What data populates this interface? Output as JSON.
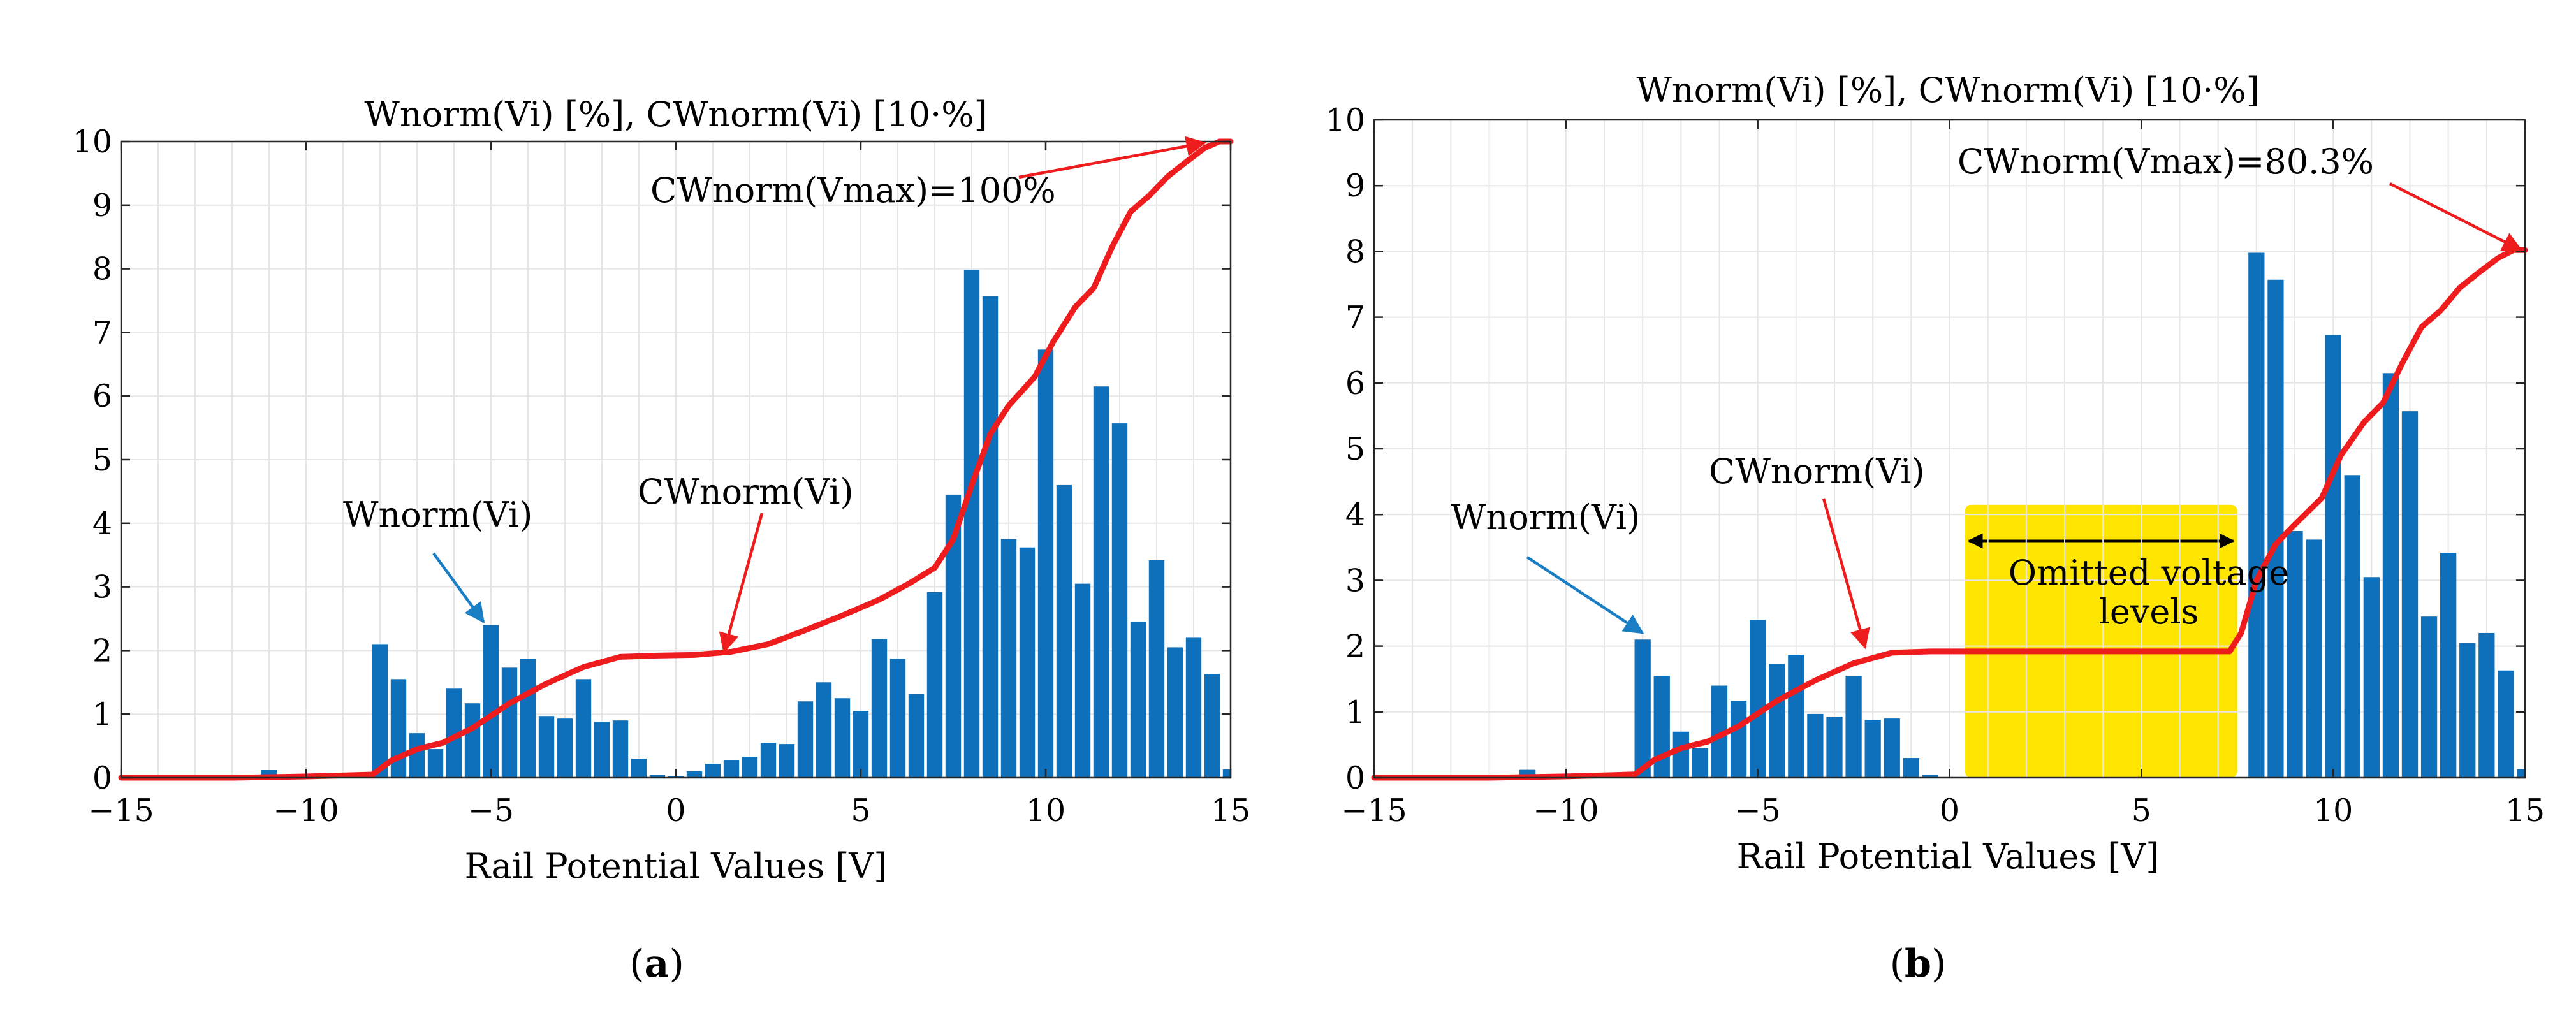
{
  "chart_data": [
    {
      "type": "bar",
      "panel_label": "a",
      "title": "Wnorm(Vi) [%], CWnorm(Vi) [10·%]",
      "xlabel": "Rail Potential Values [V]",
      "ylabel": "",
      "xlim": [
        -15,
        15
      ],
      "ylim": [
        0,
        10
      ],
      "xticks": [
        -15,
        -10,
        -5,
        0,
        5,
        10,
        15
      ],
      "xtick_labels": [
        "−15",
        "−10",
        "−5",
        "0",
        "5",
        "10",
        "15"
      ],
      "yticks": [
        0,
        1,
        2,
        3,
        4,
        5,
        6,
        7,
        8,
        9,
        10
      ],
      "grid": true,
      "bar_width": 0.42,
      "series": [
        {
          "name": "Wnorm(Vi)",
          "color": "#0e6fba",
          "x": [
            -11,
            -8,
            -7.5,
            -7,
            -6.5,
            -6,
            -5.5,
            -5,
            -4.5,
            -4,
            -3.5,
            -3,
            -2.5,
            -2,
            -1.5,
            -1,
            -0.5,
            0,
            0.5,
            1,
            1.5,
            2,
            2.5,
            3,
            3.5,
            4,
            4.5,
            5,
            5.5,
            6,
            6.5,
            7,
            7.5,
            8,
            8.5,
            9,
            9.5,
            10,
            10.5,
            11,
            11.5,
            12,
            12.5,
            13,
            13.5,
            14,
            14.5,
            15
          ],
          "values": [
            0.12,
            2.1,
            1.55,
            0.7,
            0.45,
            1.4,
            1.17,
            2.4,
            1.73,
            1.87,
            0.97,
            0.93,
            1.55,
            0.88,
            0.9,
            0.3,
            0.04,
            0.03,
            0.1,
            0.22,
            0.28,
            0.33,
            0.55,
            0.53,
            1.2,
            1.5,
            1.25,
            1.05,
            2.18,
            1.87,
            1.32,
            2.92,
            4.45,
            7.98,
            7.57,
            3.75,
            3.62,
            6.73,
            4.6,
            3.05,
            6.15,
            5.57,
            2.45,
            3.42,
            2.05,
            2.2,
            1.63,
            0.13
          ]
        },
        {
          "name": "CWnorm(Vi)",
          "type": "line",
          "color": "#ee1c1c",
          "x": [
            -15,
            -12,
            -10,
            -8.2,
            -7.7,
            -7,
            -6.3,
            -5.5,
            -4.5,
            -3.5,
            -2.5,
            -1.5,
            -0.5,
            0.5,
            1.5,
            2.5,
            3.5,
            4.5,
            5.5,
            6.3,
            7.0,
            7.5,
            8.0,
            8.5,
            9.0,
            9.7,
            10.2,
            10.8,
            11.3,
            11.8,
            12.3,
            12.8,
            13.3,
            13.8,
            14.3,
            14.7,
            15.0
          ],
          "values": [
            0,
            0,
            0.02,
            0.05,
            0.27,
            0.45,
            0.55,
            0.78,
            1.17,
            1.48,
            1.74,
            1.9,
            1.92,
            1.93,
            1.98,
            2.1,
            2.32,
            2.55,
            2.8,
            3.05,
            3.3,
            3.75,
            4.6,
            5.4,
            5.85,
            6.3,
            6.85,
            7.4,
            7.7,
            8.35,
            8.9,
            9.15,
            9.45,
            9.68,
            9.9,
            10.0,
            10.0
          ]
        }
      ],
      "annotations": [
        {
          "text": "CWnorm(Vmax)=100%",
          "target": [
            14.3,
            9.98
          ],
          "color": "#ee1c1c"
        },
        {
          "text": "CWnorm(Vi)",
          "target": [
            1.3,
            1.98
          ],
          "color": "#ee1c1c"
        },
        {
          "text": "Wnorm(Vi)",
          "target": [
            -5.2,
            2.45
          ],
          "color": "#1a7ec4"
        }
      ]
    },
    {
      "type": "bar",
      "panel_label": "b",
      "title": "Wnorm(Vi) [%], CWnorm(Vi) [10·%]",
      "xlabel": "Rail Potential Values [V]",
      "ylabel": "",
      "xlim": [
        -15,
        15
      ],
      "ylim": [
        0,
        10
      ],
      "xticks": [
        -15,
        -10,
        -5,
        0,
        5,
        10,
        15
      ],
      "xtick_labels": [
        "−15",
        "−10",
        "−5",
        "0",
        "5",
        "10",
        "15"
      ],
      "yticks": [
        0,
        1,
        2,
        3,
        4,
        5,
        6,
        7,
        8,
        9,
        10
      ],
      "grid": true,
      "bar_width": 0.42,
      "highlight": {
        "x_range": [
          0.4,
          7.5
        ],
        "y_range": [
          0,
          4.15
        ],
        "label_lines": [
          "Omitted voltage",
          "levels"
        ],
        "color": "#ffe600"
      },
      "series": [
        {
          "name": "Wnorm(Vi)",
          "color": "#0e6fba",
          "x": [
            -11,
            -8,
            -7.5,
            -7,
            -6.5,
            -6,
            -5.5,
            -5,
            -4.5,
            -4,
            -3.5,
            -3,
            -2.5,
            -2,
            -1.5,
            -1,
            -0.5,
            8,
            8.5,
            9,
            9.5,
            10,
            10.5,
            11,
            11.5,
            12,
            12.5,
            13,
            13.5,
            14,
            14.5,
            15
          ],
          "values": [
            0.12,
            2.1,
            1.55,
            0.7,
            0.45,
            1.4,
            1.17,
            2.4,
            1.73,
            1.87,
            0.97,
            0.93,
            1.55,
            0.88,
            0.9,
            0.3,
            0.04,
            7.98,
            7.57,
            3.75,
            3.62,
            6.73,
            4.6,
            3.05,
            6.15,
            5.57,
            2.45,
            3.42,
            2.05,
            2.2,
            1.63,
            0.13
          ]
        },
        {
          "name": "CWnorm(Vi)",
          "type": "line",
          "color": "#ee1c1c",
          "x": [
            -15,
            -12,
            -10,
            -8.2,
            -7.7,
            -7,
            -6.3,
            -5.5,
            -4.5,
            -3.5,
            -2.5,
            -1.5,
            -0.5,
            1,
            3,
            5,
            7.3,
            7.6,
            8.0,
            8.5,
            9.0,
            9.7,
            10.2,
            10.8,
            11.3,
            11.8,
            12.3,
            12.8,
            13.3,
            13.8,
            14.3,
            14.7,
            15.0
          ],
          "values": [
            0,
            0,
            0.02,
            0.05,
            0.27,
            0.45,
            0.55,
            0.78,
            1.17,
            1.48,
            1.74,
            1.9,
            1.92,
            1.92,
            1.92,
            1.92,
            1.92,
            2.2,
            3.0,
            3.55,
            3.85,
            4.25,
            4.9,
            5.4,
            5.7,
            6.3,
            6.85,
            7.1,
            7.45,
            7.68,
            7.9,
            8.02,
            8.02
          ]
        }
      ],
      "annotations": [
        {
          "text": "CWnorm(Vmax)=80.3%",
          "target": [
            14.9,
            8.02
          ],
          "color": "#ee1c1c"
        },
        {
          "text": "CWnorm(Vi)",
          "target": [
            -2.2,
            1.98
          ],
          "color": "#ee1c1c"
        },
        {
          "text": "Wnorm(Vi)",
          "target": [
            -8.0,
            2.2
          ],
          "color": "#1a7ec4"
        }
      ]
    }
  ]
}
